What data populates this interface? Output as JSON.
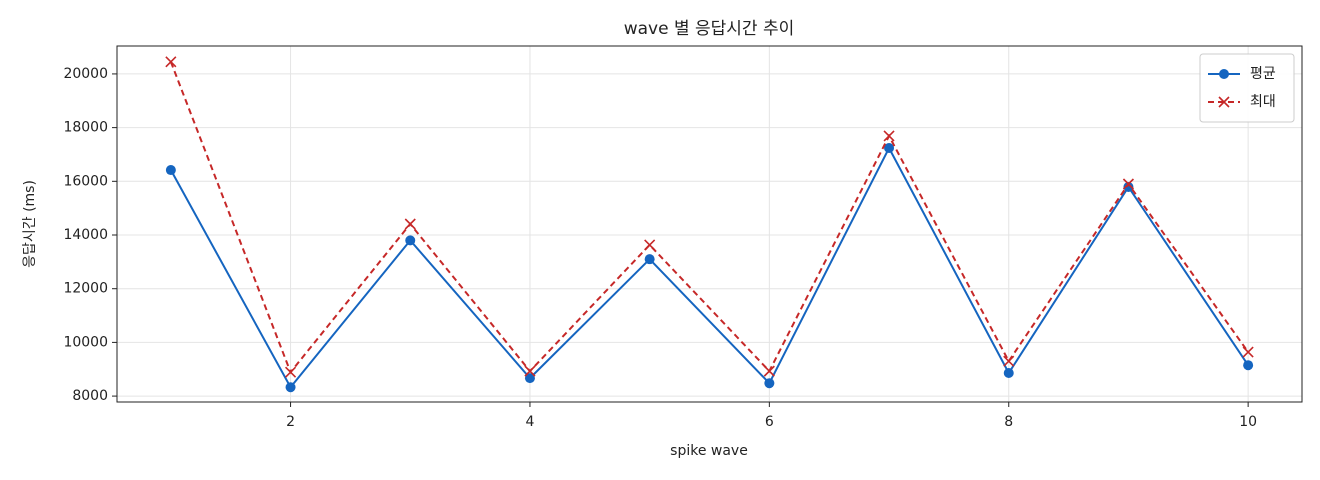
{
  "chart_data": {
    "type": "line",
    "title": "wave 별 응답시간 추이",
    "x_label": "spike wave",
    "y_label": "응답시간 (ms)",
    "x": [
      1,
      2,
      3,
      4,
      5,
      6,
      7,
      8,
      9,
      10
    ],
    "series": [
      {
        "name": "평균",
        "color": "#1565c0",
        "marker": "circle",
        "dash": false,
        "values": [
          16420,
          8330,
          13800,
          8670,
          13100,
          8480,
          17240,
          8860,
          15790,
          9150
        ]
      },
      {
        "name": "최대",
        "color": "#c62828",
        "marker": "x",
        "dash": true,
        "values": [
          20450,
          8890,
          14410,
          8930,
          13630,
          8930,
          17690,
          9300,
          15900,
          9640
        ]
      }
    ],
    "xlim": [
      0.55,
      10.45
    ],
    "xticks": [
      2,
      4,
      6,
      8,
      10
    ],
    "ylim": [
      7780,
      21040
    ],
    "yticks": [
      8000,
      10000,
      12000,
      14000,
      16000,
      18000,
      20000
    ],
    "grid": true,
    "legend": "upper right"
  }
}
